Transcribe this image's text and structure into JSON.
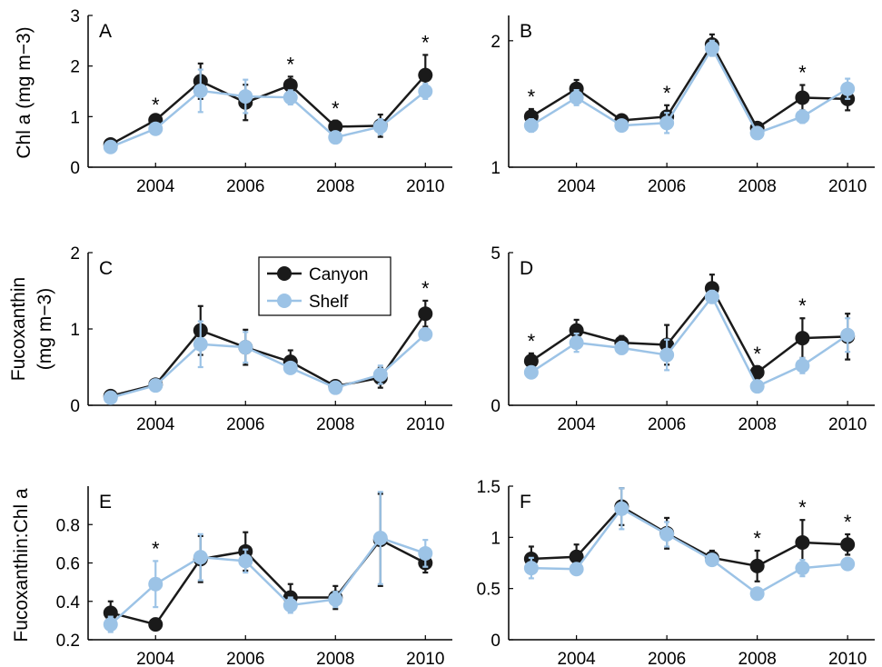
{
  "figure": {
    "ylabels": {
      "row1": "Chl a (mg m−3)",
      "row2_line1": "Fucoxanthin",
      "row2_line2": "(mg m−3)",
      "row3": "Fucoxanthin:Chl a"
    },
    "legend": {
      "canyon": "Canyon",
      "shelf": "Shelf"
    }
  },
  "colors": {
    "canyon": "#1a1a1a",
    "shelf": "#9cc3e6"
  },
  "chart_data": [
    {
      "type": "line",
      "panel": "A",
      "xlim": [
        2002.5,
        2010.6
      ],
      "ylim": [
        0,
        3
      ],
      "xticks": [
        2004,
        2006,
        2008,
        2010
      ],
      "yticks": [
        0,
        1,
        2,
        3
      ],
      "x": [
        2003,
        2004,
        2005,
        2006,
        2007,
        2008,
        2009,
        2010
      ],
      "series": [
        {
          "name": "Canyon",
          "values": [
            0.45,
            0.93,
            1.7,
            1.28,
            1.62,
            0.8,
            0.82,
            1.82
          ],
          "err": [
            0.06,
            0.06,
            0.35,
            0.35,
            0.17,
            0.12,
            0.22,
            0.4
          ]
        },
        {
          "name": "Shelf",
          "values": [
            0.4,
            0.76,
            1.51,
            1.4,
            1.38,
            0.59,
            0.8,
            1.5
          ],
          "err": [
            0.05,
            0.05,
            0.42,
            0.33,
            0.14,
            0.06,
            0.15,
            0.15
          ]
        }
      ],
      "stars": [
        2004,
        2007,
        2008,
        2010
      ]
    },
    {
      "type": "line",
      "panel": "B",
      "xlim": [
        2002.5,
        2010.6
      ],
      "ylim": [
        1,
        2.2
      ],
      "xticks": [
        2004,
        2006,
        2008,
        2010
      ],
      "yticks": [
        1,
        2
      ],
      "x": [
        2003,
        2004,
        2005,
        2006,
        2007,
        2008,
        2009,
        2010
      ],
      "series": [
        {
          "name": "Canyon",
          "values": [
            1.4,
            1.62,
            1.37,
            1.4,
            1.97,
            1.31,
            1.55,
            1.54
          ],
          "err": [
            0.06,
            0.07,
            0.04,
            0.09,
            0.08,
            0.04,
            0.1,
            0.09
          ]
        },
        {
          "name": "Shelf",
          "values": [
            1.33,
            1.55,
            1.33,
            1.35,
            1.94,
            1.27,
            1.4,
            1.62
          ],
          "err": [
            0.05,
            0.06,
            0.03,
            0.08,
            0.06,
            0.04,
            0.05,
            0.08
          ]
        }
      ],
      "stars": [
        2003,
        2006,
        2009
      ]
    },
    {
      "type": "line",
      "panel": "C",
      "xlim": [
        2002.5,
        2010.6
      ],
      "ylim": [
        0,
        2
      ],
      "xticks": [
        2004,
        2006,
        2008,
        2010
      ],
      "yticks": [
        0,
        1,
        2
      ],
      "x": [
        2003,
        2004,
        2005,
        2006,
        2007,
        2008,
        2009,
        2010
      ],
      "series": [
        {
          "name": "Canyon",
          "values": [
            0.12,
            0.27,
            0.98,
            0.76,
            0.57,
            0.25,
            0.36,
            1.2
          ],
          "err": [
            0.03,
            0.03,
            0.32,
            0.23,
            0.15,
            0.04,
            0.13,
            0.17
          ]
        },
        {
          "name": "Shelf",
          "values": [
            0.1,
            0.26,
            0.8,
            0.76,
            0.49,
            0.23,
            0.4,
            0.93
          ],
          "err": [
            0.02,
            0.02,
            0.3,
            0.2,
            0.05,
            0.03,
            0.12,
            0.04
          ]
        }
      ],
      "stars": [
        2010
      ]
    },
    {
      "type": "line",
      "panel": "D",
      "xlim": [
        2002.5,
        2010.6
      ],
      "ylim": [
        0,
        5
      ],
      "xticks": [
        2004,
        2006,
        2008,
        2010
      ],
      "yticks": [
        0,
        5
      ],
      "x": [
        2003,
        2004,
        2005,
        2006,
        2007,
        2008,
        2009,
        2010
      ],
      "series": [
        {
          "name": "Canyon",
          "values": [
            1.45,
            2.45,
            2.05,
            1.98,
            3.83,
            1.08,
            2.2,
            2.25
          ],
          "err": [
            0.25,
            0.35,
            0.22,
            0.65,
            0.45,
            0.2,
            0.65,
            0.75
          ]
        },
        {
          "name": "Shelf",
          "values": [
            1.08,
            2.05,
            1.88,
            1.65,
            3.55,
            0.62,
            1.3,
            2.3
          ],
          "err": [
            0.15,
            0.3,
            0.2,
            0.5,
            0.2,
            0.08,
            0.25,
            0.55
          ]
        }
      ],
      "stars": [
        2003,
        2008,
        2009
      ]
    },
    {
      "type": "line",
      "panel": "E",
      "xlim": [
        2002.5,
        2010.6
      ],
      "ylim": [
        0.2,
        1.0
      ],
      "xticks": [
        2004,
        2006,
        2008,
        2010
      ],
      "yticks": [
        0.2,
        0.4,
        0.6,
        0.8
      ],
      "x": [
        2003,
        2004,
        2005,
        2006,
        2007,
        2008,
        2009,
        2010
      ],
      "series": [
        {
          "name": "Canyon",
          "values": [
            0.34,
            0.28,
            0.62,
            0.66,
            0.42,
            0.42,
            0.72,
            0.6
          ],
          "err": [
            0.06,
            0.03,
            0.12,
            0.1,
            0.07,
            0.06,
            0.24,
            0.05
          ]
        },
        {
          "name": "Shelf",
          "values": [
            0.28,
            0.49,
            0.63,
            0.61,
            0.38,
            0.41,
            0.73,
            0.65
          ],
          "err": [
            0.04,
            0.12,
            0.12,
            0.06,
            0.04,
            0.04,
            0.24,
            0.07
          ]
        }
      ],
      "stars": [
        2004
      ]
    },
    {
      "type": "line",
      "panel": "F",
      "xlim": [
        2002.5,
        2010.6
      ],
      "ylim": [
        0,
        1.5
      ],
      "xticks": [
        2004,
        2006,
        2008,
        2010
      ],
      "yticks": [
        0,
        0.5,
        1,
        1.5
      ],
      "x": [
        2003,
        2004,
        2005,
        2006,
        2007,
        2008,
        2009,
        2010
      ],
      "series": [
        {
          "name": "Canyon",
          "values": [
            0.79,
            0.81,
            1.3,
            1.04,
            0.8,
            0.72,
            0.95,
            0.93
          ],
          "err": [
            0.12,
            0.12,
            0.18,
            0.15,
            0.07,
            0.15,
            0.22,
            0.1
          ]
        },
        {
          "name": "Shelf",
          "values": [
            0.7,
            0.69,
            1.28,
            1.03,
            0.78,
            0.45,
            0.7,
            0.74
          ],
          "err": [
            0.1,
            0.05,
            0.2,
            0.12,
            0.05,
            0.03,
            0.08,
            0.05
          ]
        }
      ],
      "stars": [
        2008,
        2009,
        2010
      ]
    }
  ]
}
